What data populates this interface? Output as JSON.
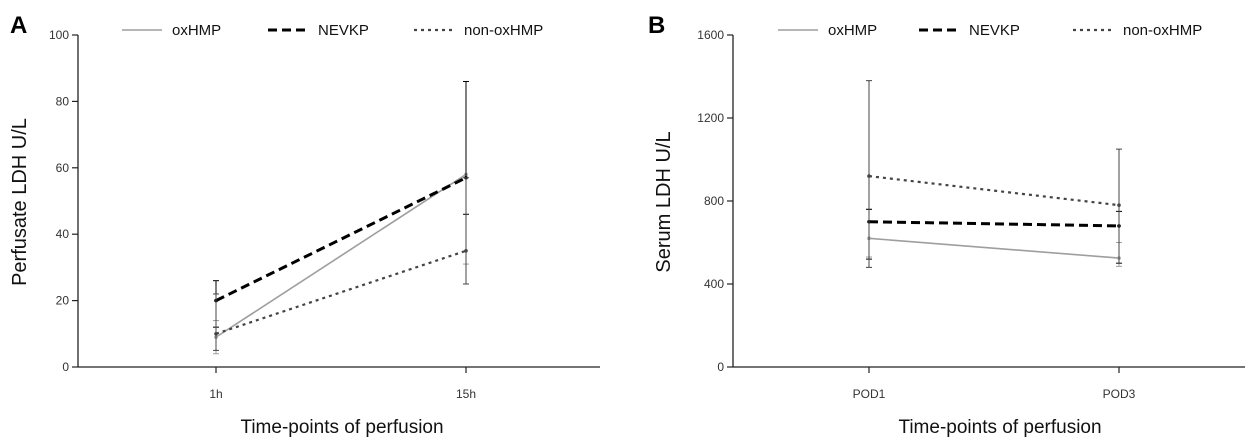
{
  "chart_data": [
    {
      "panel": "A",
      "type": "line",
      "categories": [
        "1h",
        "15h"
      ],
      "xlabel": "Time-points of perfusion",
      "ylabel": "Perfusate LDH U/L",
      "ylim": [
        0,
        100
      ],
      "yticks": [
        "0",
        "20",
        "40",
        "60",
        "80",
        "100"
      ],
      "grid": false,
      "legend_position": "top",
      "series": [
        {
          "name": "oxHMP",
          "values": [
            9,
            58
          ],
          "err_low": [
            4,
            31
          ],
          "err_high": [
            14,
            86
          ],
          "style": "solid",
          "color": "#9e9e9e"
        },
        {
          "name": "NEVKP",
          "values": [
            20,
            57
          ],
          "err_low": [
            12,
            46
          ],
          "err_high": [
            26,
            86
          ],
          "style": "dashed",
          "color": "#000000"
        },
        {
          "name": "non-oxHMP",
          "values": [
            10,
            35
          ],
          "err_low": [
            5,
            25
          ],
          "err_high": [
            22,
            57
          ],
          "style": "dotted",
          "color": "#444444"
        }
      ]
    },
    {
      "panel": "B",
      "type": "line",
      "categories": [
        "POD1",
        "POD3"
      ],
      "xlabel": "Time-points of perfusion",
      "ylabel": "Serum LDH U/L",
      "ylim": [
        0,
        1600
      ],
      "yticks": [
        "0",
        "400",
        "800",
        "1200",
        "1600"
      ],
      "grid": false,
      "legend_position": "top",
      "series": [
        {
          "name": "oxHMP",
          "values": [
            620,
            525
          ],
          "err_low": [
            530,
            485
          ],
          "err_high": [
            760,
            600
          ],
          "style": "solid",
          "color": "#9e9e9e"
        },
        {
          "name": "NEVKP",
          "values": [
            700,
            680
          ],
          "err_low": [
            520,
            500
          ],
          "err_high": [
            760,
            750
          ],
          "style": "dashed",
          "color": "#000000"
        },
        {
          "name": "non-oxHMP",
          "values": [
            920,
            780
          ],
          "err_low": [
            480,
            500
          ],
          "err_high": [
            1380,
            1050
          ],
          "style": "dotted",
          "color": "#444444"
        }
      ]
    }
  ]
}
